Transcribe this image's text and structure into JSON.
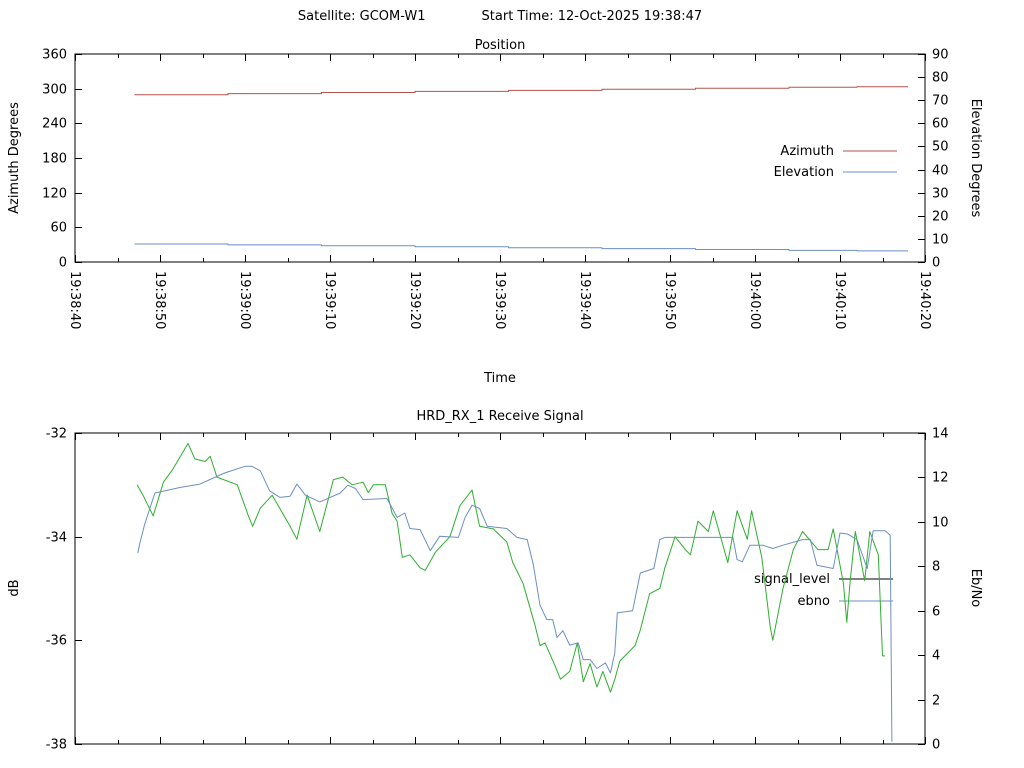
{
  "header": {
    "satellite_label": "Satellite: GCOM-W1",
    "start_time_label": "Start Time: 12-Oct-2025 19:38:47"
  },
  "colors": {
    "background": "#ffffff",
    "axis": "#000000",
    "azimuth_line": "#b5524f",
    "elevation_line": "#6b8fc2",
    "signal_level_line": "#2fae2f",
    "signal_level_legend_sample": "#000000",
    "ebno_line": "#6b8fc2"
  },
  "chart_data": [
    {
      "type": "line",
      "title": "Position",
      "xlabel": "Time",
      "ylabel_left": "Azimuth Degrees",
      "ylabel_right": "Elevation Degrees",
      "x_range_seconds": [
        0,
        100
      ],
      "x_ticks": {
        "seconds": [
          0,
          10,
          20,
          30,
          40,
          50,
          60,
          70,
          80,
          90,
          100
        ],
        "labels": [
          "19:38:40",
          "19:38:50",
          "19:39:00",
          "19:39:10",
          "19:39:20",
          "19:39:30",
          "19:39:40",
          "19:39:50",
          "19:40:00",
          "19:40:10",
          "19:40:20"
        ]
      },
      "x_minor_seconds": [
        5,
        15,
        25,
        35,
        45,
        55,
        65,
        75,
        85,
        95
      ],
      "x_tick_labels_visible": true,
      "ylim_left": [
        0,
        360
      ],
      "yticks_left": [
        0,
        60,
        120,
        180,
        240,
        300,
        360
      ],
      "ylim_right": [
        0,
        90
      ],
      "yticks_right": [
        0,
        10,
        20,
        30,
        40,
        50,
        60,
        70,
        80,
        90
      ],
      "grid": false,
      "legend_position": "inside-right",
      "series": [
        {
          "name": "Azimuth",
          "axis": "left",
          "color": "#b5524f",
          "legend_color": "#b5524f",
          "points": [
            [
              7,
              289.6
            ],
            [
              18,
              289.6
            ],
            [
              18,
              291.5
            ],
            [
              29,
              291.5
            ],
            [
              29,
              293.3
            ],
            [
              40,
              293.3
            ],
            [
              40,
              295.2
            ],
            [
              51,
              295.2
            ],
            [
              51,
              297.0
            ],
            [
              62,
              297.0
            ],
            [
              62,
              298.9
            ],
            [
              73,
              298.9
            ],
            [
              73,
              300.7
            ],
            [
              84,
              300.7
            ],
            [
              84,
              302.6
            ],
            [
              92,
              302.6
            ],
            [
              92,
              303.2
            ],
            [
              98,
              303.2
            ]
          ]
        },
        {
          "name": "Elevation",
          "axis": "right",
          "color": "#6b8fc2",
          "legend_color": "#6b8fc2",
          "points": [
            [
              7,
              7.8
            ],
            [
              18,
              7.8
            ],
            [
              18,
              7.4
            ],
            [
              29,
              7.4
            ],
            [
              29,
              7.0
            ],
            [
              40,
              7.0
            ],
            [
              40,
              6.6
            ],
            [
              51,
              6.6
            ],
            [
              51,
              6.2
            ],
            [
              62,
              6.2
            ],
            [
              62,
              5.8
            ],
            [
              73,
              5.8
            ],
            [
              73,
              5.4
            ],
            [
              84,
              5.4
            ],
            [
              84,
              5.0
            ],
            [
              92,
              5.0
            ],
            [
              92,
              4.8
            ],
            [
              98,
              4.8
            ]
          ]
        }
      ]
    },
    {
      "type": "line",
      "title": "HRD_RX_1 Receive Signal",
      "xlabel": "",
      "ylabel_left": "dB",
      "ylabel_right": "Eb/No",
      "x_range_seconds": [
        0,
        100
      ],
      "x_ticks": {
        "seconds": [
          0,
          10,
          20,
          30,
          40,
          50,
          60,
          70,
          80,
          90,
          100
        ],
        "labels": []
      },
      "x_minor_seconds": [
        5,
        15,
        25,
        35,
        45,
        55,
        65,
        75,
        85,
        95
      ],
      "x_tick_labels_visible": false,
      "ylim_left": [
        -38,
        -32
      ],
      "yticks_left": [
        -38,
        -36,
        -34,
        -32
      ],
      "ylim_right": [
        0,
        14
      ],
      "yticks_right": [
        0,
        2,
        4,
        6,
        8,
        10,
        12,
        14
      ],
      "grid": false,
      "legend_position": "inside-right",
      "series": [
        {
          "name": "signal_level",
          "axis": "left",
          "color": "#2fae2f",
          "legend_color": "#000000",
          "points": [
            [
              7.3,
              -33.0
            ],
            [
              8,
              -33.2
            ],
            [
              9.2,
              -33.6
            ],
            [
              10.4,
              -32.95
            ],
            [
              11.5,
              -32.7
            ],
            [
              13.3,
              -32.2
            ],
            [
              14.1,
              -32.5
            ],
            [
              15.3,
              -32.55
            ],
            [
              15.9,
              -32.45
            ],
            [
              16.7,
              -32.85
            ],
            [
              19.1,
              -33.0
            ],
            [
              20.4,
              -33.6
            ],
            [
              20.9,
              -33.8
            ],
            [
              21.8,
              -33.45
            ],
            [
              23.2,
              -33.2
            ],
            [
              25.3,
              -33.8
            ],
            [
              26.1,
              -34.05
            ],
            [
              27.3,
              -33.2
            ],
            [
              28.8,
              -33.9
            ],
            [
              30.4,
              -32.9
            ],
            [
              31.5,
              -32.85
            ],
            [
              32.6,
              -33.0
            ],
            [
              33.9,
              -32.95
            ],
            [
              34.5,
              -33.15
            ],
            [
              35.1,
              -33.0
            ],
            [
              36.5,
              -33.0
            ],
            [
              37.3,
              -33.55
            ],
            [
              37.9,
              -33.7
            ],
            [
              38.5,
              -34.4
            ],
            [
              39.4,
              -34.35
            ],
            [
              40.6,
              -34.6
            ],
            [
              41.2,
              -34.65
            ],
            [
              42.4,
              -34.3
            ],
            [
              44.1,
              -34.0
            ],
            [
              45.3,
              -33.4
            ],
            [
              46.7,
              -33.1
            ],
            [
              47.6,
              -33.8
            ],
            [
              49.2,
              -33.85
            ],
            [
              50.8,
              -34.1
            ],
            [
              51.5,
              -34.5
            ],
            [
              52.7,
              -34.9
            ],
            [
              54.1,
              -35.7
            ],
            [
              54.7,
              -36.1
            ],
            [
              55.3,
              -36.05
            ],
            [
              56.5,
              -36.5
            ],
            [
              57.1,
              -36.75
            ],
            [
              58.2,
              -36.6
            ],
            [
              59.1,
              -36.05
            ],
            [
              59.8,
              -36.8
            ],
            [
              60.6,
              -36.45
            ],
            [
              61.4,
              -36.9
            ],
            [
              62.1,
              -36.6
            ],
            [
              63,
              -37.0
            ],
            [
              63.5,
              -36.75
            ],
            [
              64.1,
              -36.4
            ],
            [
              65.9,
              -36.1
            ],
            [
              66.5,
              -35.8
            ],
            [
              67.6,
              -35.1
            ],
            [
              68.8,
              -35.0
            ],
            [
              69.4,
              -34.6
            ],
            [
              70.6,
              -34.0
            ],
            [
              71.8,
              -34.25
            ],
            [
              72.4,
              -34.35
            ],
            [
              73.3,
              -33.7
            ],
            [
              74.5,
              -33.9
            ],
            [
              75.1,
              -33.5
            ],
            [
              76.8,
              -34.5
            ],
            [
              77.9,
              -33.5
            ],
            [
              79.1,
              -34.05
            ],
            [
              79.6,
              -33.5
            ],
            [
              80.8,
              -34.4
            ],
            [
              81.8,
              -35.75
            ],
            [
              82.1,
              -36.0
            ],
            [
              83.3,
              -35.0
            ],
            [
              84.5,
              -34.25
            ],
            [
              85.6,
              -33.9
            ],
            [
              87.4,
              -34.25
            ],
            [
              88.6,
              -34.25
            ],
            [
              89.2,
              -33.85
            ],
            [
              90.4,
              -34.9
            ],
            [
              90.8,
              -35.65
            ],
            [
              91.2,
              -34.85
            ],
            [
              91.8,
              -33.9
            ],
            [
              92.9,
              -34.85
            ],
            [
              93.5,
              -33.9
            ],
            [
              94.5,
              -34.35
            ],
            [
              95,
              -36.3
            ],
            [
              95.3,
              -36.3
            ]
          ]
        },
        {
          "name": "ebno",
          "axis": "right",
          "color": "#6b8fc2",
          "legend_color": "#6b8fc2",
          "points": [
            [
              7.4,
              8.6
            ],
            [
              7.6,
              9.0
            ],
            [
              8.2,
              9.9
            ],
            [
              9.4,
              11.3
            ],
            [
              10,
              11.35
            ],
            [
              12.4,
              11.55
            ],
            [
              14.7,
              11.7
            ],
            [
              17.6,
              12.2
            ],
            [
              20,
              12.5
            ],
            [
              20.8,
              12.5
            ],
            [
              21.8,
              12.3
            ],
            [
              22.9,
              11.4
            ],
            [
              24.1,
              11.1
            ],
            [
              25.3,
              11.15
            ],
            [
              26.1,
              11.7
            ],
            [
              27.1,
              11.2
            ],
            [
              28.8,
              10.9
            ],
            [
              31.2,
              11.3
            ],
            [
              32.1,
              11.65
            ],
            [
              33,
              11.5
            ],
            [
              33.9,
              11.0
            ],
            [
              36.7,
              11.05
            ],
            [
              37.9,
              10.2
            ],
            [
              38.8,
              10.4
            ],
            [
              39.4,
              9.7
            ],
            [
              40.6,
              9.65
            ],
            [
              41.8,
              8.7
            ],
            [
              42.9,
              9.35
            ],
            [
              45.1,
              9.3
            ],
            [
              45.9,
              10.2
            ],
            [
              46.7,
              10.75
            ],
            [
              47.6,
              10.6
            ],
            [
              48.5,
              9.8
            ],
            [
              50.8,
              9.7
            ],
            [
              52,
              9.3
            ],
            [
              53.2,
              9.2
            ],
            [
              53.9,
              8.1
            ],
            [
              54.7,
              6.25
            ],
            [
              55.5,
              5.6
            ],
            [
              56.2,
              5.6
            ],
            [
              56.7,
              4.8
            ],
            [
              57.4,
              5.1
            ],
            [
              58.2,
              4.45
            ],
            [
              59.2,
              4.55
            ],
            [
              59.8,
              3.8
            ],
            [
              60.6,
              3.8
            ],
            [
              61.4,
              3.4
            ],
            [
              62.4,
              3.65
            ],
            [
              63,
              3.2
            ],
            [
              63.5,
              4.1
            ],
            [
              63.8,
              5.9
            ],
            [
              65.6,
              6.0
            ],
            [
              66.5,
              7.7
            ],
            [
              68.1,
              7.9
            ],
            [
              68.8,
              9.2
            ],
            [
              69.4,
              9.3
            ],
            [
              77.4,
              9.3
            ],
            [
              77.9,
              8.3
            ],
            [
              78.5,
              8.2
            ],
            [
              79.4,
              8.95
            ],
            [
              80.9,
              8.95
            ],
            [
              82.1,
              8.8
            ],
            [
              83.3,
              8.95
            ],
            [
              85.6,
              9.2
            ],
            [
              86.5,
              9.2
            ],
            [
              87.3,
              8.05
            ],
            [
              89.2,
              7.9
            ],
            [
              90,
              9.5
            ],
            [
              90.9,
              9.45
            ],
            [
              92,
              9.2
            ],
            [
              93.2,
              7.9
            ],
            [
              93.9,
              9.6
            ],
            [
              95.3,
              9.6
            ],
            [
              95.9,
              9.4
            ],
            [
              96.1,
              0.1
            ]
          ]
        }
      ]
    }
  ]
}
